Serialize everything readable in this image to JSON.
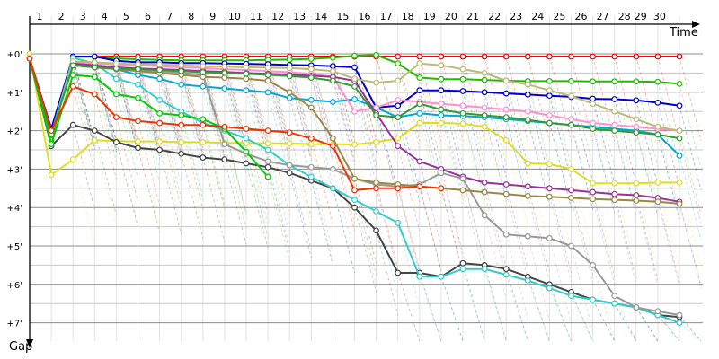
{
  "chart_data": {
    "type": "line",
    "xlabel": "Time",
    "ylabel": "Gap",
    "x_ticks": [
      "1",
      "2",
      "3",
      "4",
      "5",
      "6",
      "7",
      "8",
      "9",
      "10",
      "11",
      "12",
      "13",
      "14",
      "15",
      "16",
      "17",
      "18",
      "19",
      "20",
      "21",
      "22",
      "23",
      "24",
      "25",
      "26",
      "27",
      "28",
      "29",
      "30"
    ],
    "y_ticks": [
      "+0'",
      "+1'",
      "+2'",
      "+3'",
      "+4'",
      "+5'",
      "+6'",
      "+7'"
    ],
    "xlim": [
      1,
      31
    ],
    "ylim": [
      0,
      7
    ],
    "grid": true,
    "series": [
      {
        "color": "#ff0000",
        "x": [
          1,
          2,
          3,
          4,
          5,
          6,
          7,
          8,
          9,
          10,
          11,
          12,
          13,
          14,
          15,
          16,
          17,
          18,
          19,
          20,
          21,
          22,
          23,
          24,
          25,
          26,
          27,
          28,
          29,
          30,
          31
        ],
        "values": [
          0.12,
          2.1,
          0.07,
          0.07,
          0.07,
          0.07,
          0.07,
          0.07,
          0.07,
          0.07,
          0.07,
          0.07,
          0.07,
          0.07,
          0.07,
          0.07,
          0.07,
          0.07,
          0.07,
          0.07,
          0.07,
          0.07,
          0.07,
          0.07,
          0.07,
          0.07,
          0.07,
          0.07,
          0.07,
          0.07,
          0.07
        ]
      },
      {
        "color": "#22bb00",
        "x": [
          1,
          2,
          3,
          4,
          5,
          6,
          7,
          8,
          9,
          10,
          11,
          12,
          13,
          14,
          15,
          16,
          17,
          18,
          19,
          20,
          21,
          22,
          23,
          24,
          25,
          26,
          27,
          28,
          29,
          30,
          31
        ],
        "values": [
          0.12,
          2.25,
          0.08,
          0.08,
          0.12,
          0.14,
          0.16,
          0.17,
          0.17,
          0.17,
          0.17,
          0.16,
          0.15,
          0.13,
          0.1,
          0.05,
          0.03,
          0.25,
          0.62,
          0.66,
          0.66,
          0.68,
          0.7,
          0.71,
          0.71,
          0.71,
          0.72,
          0.72,
          0.72,
          0.73,
          0.78
        ]
      },
      {
        "color": "#0000cc",
        "x": [
          1,
          2,
          3,
          4,
          5,
          6,
          7,
          8,
          9,
          10,
          11,
          12,
          13,
          14,
          15,
          16,
          17,
          18,
          19,
          20,
          21,
          22,
          23,
          24,
          25,
          26,
          27,
          28,
          29,
          30,
          31
        ],
        "values": [
          0.12,
          1.95,
          0.07,
          0.07,
          0.18,
          0.22,
          0.22,
          0.24,
          0.24,
          0.25,
          0.26,
          0.27,
          0.29,
          0.3,
          0.32,
          0.35,
          1.4,
          1.35,
          0.95,
          0.95,
          0.97,
          1.0,
          1.03,
          1.06,
          1.09,
          1.12,
          1.17,
          1.18,
          1.21,
          1.27,
          1.35
        ]
      },
      {
        "color": "#00a9d4",
        "x": [
          1,
          2,
          3,
          4,
          5,
          6,
          7,
          8,
          9,
          10,
          11,
          12,
          13,
          14,
          15,
          16,
          17,
          18,
          19,
          20,
          21,
          22,
          23,
          24,
          25,
          26,
          27,
          28,
          29,
          30,
          31
        ],
        "values": [
          0.12,
          2.1,
          0.2,
          0.3,
          0.4,
          0.55,
          0.65,
          0.8,
          0.85,
          0.9,
          0.95,
          1.0,
          1.15,
          1.2,
          1.25,
          1.18,
          1.4,
          1.65,
          1.55,
          1.6,
          1.62,
          1.65,
          1.7,
          1.75,
          1.8,
          1.85,
          1.9,
          1.95,
          2.0,
          2.1,
          2.65
        ]
      },
      {
        "color": "#dddd22",
        "x": [
          1,
          2,
          3,
          4,
          5,
          6,
          7,
          8,
          9,
          10,
          11,
          12,
          13,
          14,
          15,
          16,
          17,
          18,
          19,
          20,
          21,
          22,
          23,
          24,
          25,
          26,
          27,
          28,
          29,
          30,
          31
        ],
        "values": [
          0.0,
          3.15,
          2.75,
          2.25,
          2.27,
          2.28,
          2.28,
          2.3,
          2.3,
          2.32,
          2.32,
          2.33,
          2.33,
          2.35,
          2.35,
          2.36,
          2.3,
          2.2,
          1.8,
          1.8,
          1.82,
          1.9,
          2.25,
          2.85,
          2.87,
          3.0,
          3.37,
          3.37,
          3.37,
          3.35,
          3.35
        ]
      },
      {
        "color": "#444444",
        "x": [
          1,
          2,
          3,
          4,
          5,
          6,
          7,
          8,
          9,
          10,
          11,
          12,
          13,
          14,
          15,
          16,
          17,
          18,
          19,
          20,
          21,
          22,
          23,
          24,
          25,
          26,
          27,
          28,
          29,
          30,
          31
        ],
        "values": [
          0.12,
          2.4,
          1.85,
          2.0,
          2.3,
          2.45,
          2.5,
          2.6,
          2.7,
          2.75,
          2.85,
          2.95,
          3.1,
          3.3,
          3.5,
          4.0,
          4.6,
          5.7,
          5.7,
          5.8,
          5.45,
          5.5,
          5.6,
          5.8,
          6.0,
          6.2,
          6.4,
          6.5,
          6.6,
          6.8,
          6.85
        ]
      },
      {
        "color": "#33cccc",
        "x": [
          1,
          2,
          3,
          4,
          5,
          6,
          7,
          8,
          9,
          10,
          11,
          12,
          13,
          14,
          15,
          16,
          17,
          18,
          19,
          20,
          21,
          22,
          23,
          24,
          25,
          26,
          27,
          28,
          29,
          30,
          31
        ],
        "values": [
          0.12,
          2.1,
          0.1,
          0.25,
          0.65,
          0.8,
          1.2,
          1.5,
          1.8,
          2.0,
          2.2,
          2.5,
          2.9,
          3.2,
          3.5,
          3.8,
          4.1,
          4.4,
          5.8,
          5.8,
          5.6,
          5.6,
          5.75,
          5.9,
          6.1,
          6.3,
          6.4,
          6.5,
          6.6,
          6.8,
          7.0
        ]
      },
      {
        "color": "#ff8fd0",
        "x": [
          1,
          2,
          3,
          4,
          5,
          6,
          7,
          8,
          9,
          10,
          11,
          12,
          13,
          14,
          15,
          16,
          17,
          18,
          19,
          20,
          21,
          22,
          23,
          24,
          25,
          26,
          27,
          28,
          29,
          30,
          31
        ],
        "values": [
          0.12,
          2.1,
          0.22,
          0.25,
          0.28,
          0.3,
          0.32,
          0.35,
          0.37,
          0.4,
          0.42,
          0.45,
          0.48,
          0.52,
          0.6,
          1.5,
          1.4,
          1.2,
          1.25,
          1.3,
          1.35,
          1.4,
          1.45,
          1.5,
          1.6,
          1.7,
          1.8,
          1.85,
          1.9,
          1.95,
          2.0
        ]
      },
      {
        "color": "#993399",
        "x": [
          1,
          2,
          3,
          4,
          5,
          6,
          7,
          8,
          9,
          10,
          11,
          12,
          13,
          14,
          15,
          16,
          17,
          18,
          19,
          20,
          21,
          22,
          23,
          24,
          25,
          26,
          27,
          28,
          29,
          30,
          31
        ],
        "values": [
          0.12,
          2.1,
          0.25,
          0.3,
          0.35,
          0.38,
          0.4,
          0.42,
          0.45,
          0.47,
          0.5,
          0.52,
          0.55,
          0.57,
          0.6,
          0.7,
          1.55,
          2.4,
          2.8,
          3.0,
          3.2,
          3.35,
          3.4,
          3.45,
          3.5,
          3.55,
          3.6,
          3.65,
          3.68,
          3.75,
          3.85
        ]
      },
      {
        "color": "#999999",
        "x": [
          1,
          2,
          3,
          4,
          5,
          6,
          7,
          8,
          9,
          10,
          11,
          12,
          13,
          14,
          15,
          16,
          17,
          18,
          19,
          20,
          21,
          22,
          23,
          24,
          25,
          26,
          27,
          28,
          29,
          30,
          31
        ],
        "values": [
          0.12,
          2.1,
          0.3,
          0.35,
          0.4,
          0.42,
          0.45,
          0.5,
          0.55,
          2.35,
          2.6,
          2.8,
          2.9,
          2.95,
          3.0,
          3.25,
          3.4,
          3.45,
          3.4,
          3.1,
          3.25,
          4.2,
          4.7,
          4.75,
          4.8,
          5.0,
          5.5,
          6.3,
          6.6,
          6.7,
          6.8
        ]
      },
      {
        "color": "#998844",
        "x": [
          1,
          2,
          3,
          4,
          5,
          6,
          7,
          8,
          9,
          10,
          11,
          12,
          13,
          14,
          15,
          16,
          17,
          18,
          19,
          20,
          21,
          22,
          23,
          24,
          25,
          26,
          27,
          28,
          29,
          30,
          31
        ],
        "values": [
          0.12,
          2.1,
          0.3,
          0.35,
          0.4,
          0.45,
          0.5,
          0.55,
          0.6,
          0.62,
          0.65,
          0.7,
          1.0,
          1.4,
          2.2,
          3.25,
          3.35,
          3.4,
          3.45,
          3.5,
          3.55,
          3.6,
          3.65,
          3.7,
          3.72,
          3.75,
          3.78,
          3.8,
          3.82,
          3.85,
          3.9
        ]
      },
      {
        "color": "#bbbb77",
        "x": [
          1,
          2,
          3,
          4,
          5,
          6,
          7,
          8,
          9,
          10,
          11,
          12,
          13,
          14,
          15,
          16,
          17,
          18,
          19,
          20,
          21,
          22,
          23,
          24,
          25,
          26,
          27,
          28,
          29,
          30,
          31
        ],
        "values": [
          0.12,
          2.1,
          0.2,
          0.22,
          0.25,
          0.27,
          0.28,
          0.3,
          0.32,
          0.33,
          0.35,
          0.36,
          0.37,
          0.4,
          0.45,
          0.65,
          0.75,
          0.7,
          0.25,
          0.3,
          0.4,
          0.5,
          0.7,
          0.8,
          0.95,
          1.1,
          1.3,
          1.5,
          1.7,
          1.9,
          2.0
        ]
      },
      {
        "color": "#339933",
        "x": [
          1,
          2,
          3,
          4,
          5,
          6,
          7,
          8,
          9,
          10,
          11,
          12,
          13,
          14,
          15,
          16,
          17,
          18,
          19,
          20,
          21,
          22,
          23,
          24,
          25,
          26,
          27,
          28,
          29,
          30,
          31
        ],
        "values": [
          0.12,
          2.1,
          0.3,
          0.35,
          0.38,
          0.4,
          0.42,
          0.45,
          0.48,
          0.5,
          0.52,
          0.55,
          0.58,
          0.62,
          0.7,
          0.85,
          1.6,
          1.65,
          1.3,
          1.45,
          1.55,
          1.6,
          1.65,
          1.72,
          1.8,
          1.85,
          1.95,
          2.0,
          2.05,
          2.1,
          2.2
        ]
      },
      {
        "color": "#00cc00",
        "x": [
          1,
          2,
          3,
          4,
          5,
          6,
          7,
          8,
          9,
          10,
          11,
          12
        ],
        "values": [
          0.12,
          2.35,
          0.55,
          0.6,
          1.05,
          1.15,
          1.55,
          1.6,
          1.7,
          1.95,
          2.55,
          3.2
        ]
      },
      {
        "color": "#ee3300",
        "x": [
          1,
          2,
          3,
          4,
          5,
          6,
          7,
          8,
          9,
          10,
          11,
          12,
          13,
          14,
          15,
          16,
          17,
          18,
          19,
          20
        ],
        "values": [
          0.12,
          2.0,
          0.85,
          1.05,
          1.65,
          1.75,
          1.8,
          1.85,
          1.85,
          1.9,
          1.95,
          2.0,
          2.05,
          2.2,
          2.4,
          3.55,
          3.5,
          3.5,
          3.45,
          3.5
        ]
      }
    ]
  }
}
